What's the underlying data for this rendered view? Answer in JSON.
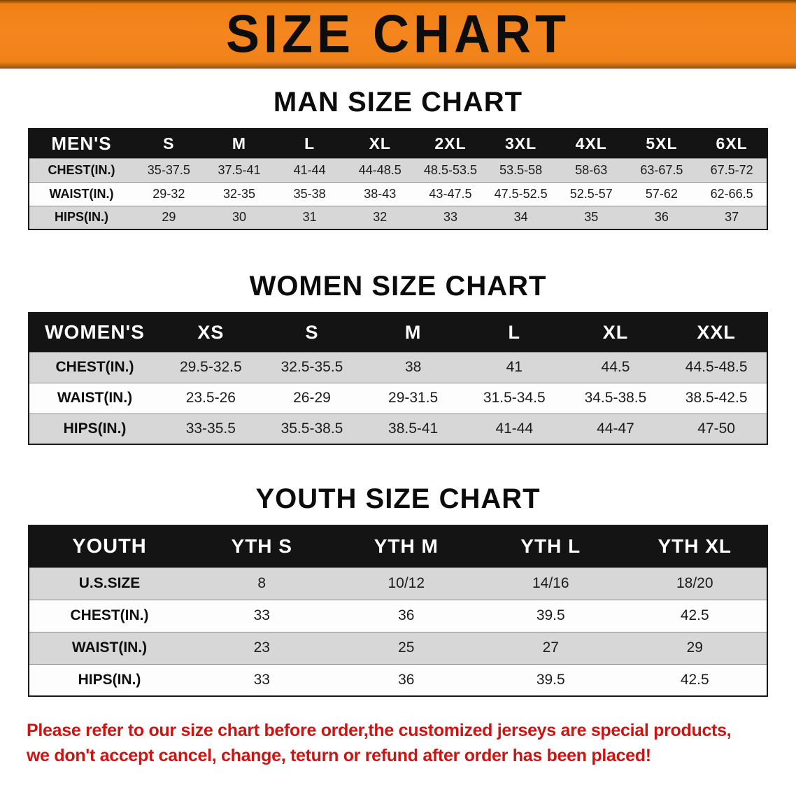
{
  "banner": {
    "title": "SIZE CHART",
    "bg_color": "#f5861f"
  },
  "sections": [
    {
      "heading": "MAN SIZE CHART",
      "table": {
        "header": [
          "MEN'S",
          "S",
          "M",
          "L",
          "XL",
          "2XL",
          "3XL",
          "4XL",
          "5XL",
          "6XL"
        ],
        "rows": [
          [
            "CHEST(IN.)",
            "35-37.5",
            "37.5-41",
            "41-44",
            "44-48.5",
            "48.5-53.5",
            "53.5-58",
            "58-63",
            "63-67.5",
            "67.5-72"
          ],
          [
            "WAIST(IN.)",
            "29-32",
            "32-35",
            "35-38",
            "38-43",
            "43-47.5",
            "47.5-52.5",
            "52.5-57",
            "57-62",
            "62-66.5"
          ],
          [
            "HIPS(IN.)",
            "29",
            "30",
            "31",
            "32",
            "33",
            "34",
            "35",
            "36",
            "37"
          ]
        ]
      }
    },
    {
      "heading": "WOMEN SIZE CHART",
      "table": {
        "header": [
          "WOMEN'S",
          "XS",
          "S",
          "M",
          "L",
          "XL",
          "XXL"
        ],
        "rows": [
          [
            "CHEST(IN.)",
            "29.5-32.5",
            "32.5-35.5",
            "38",
            "41",
            "44.5",
            "44.5-48.5"
          ],
          [
            "WAIST(IN.)",
            "23.5-26",
            "26-29",
            "29-31.5",
            "31.5-34.5",
            "34.5-38.5",
            "38.5-42.5"
          ],
          [
            "HIPS(IN.)",
            "33-35.5",
            "35.5-38.5",
            "38.5-41",
            "41-44",
            "44-47",
            "47-50"
          ]
        ]
      }
    },
    {
      "heading": "YOUTH SIZE CHART",
      "table": {
        "header": [
          "YOUTH",
          "YTH S",
          "YTH M",
          "YTH L",
          "YTH XL"
        ],
        "rows": [
          [
            "U.S.SIZE",
            "8",
            "10/12",
            "14/16",
            "18/20"
          ],
          [
            "CHEST(IN.)",
            "33",
            "36",
            "39.5",
            "42.5"
          ],
          [
            "WAIST(IN.)",
            "23",
            "25",
            "27",
            "29"
          ],
          [
            "HIPS(IN.)",
            "33",
            "36",
            "39.5",
            "42.5"
          ]
        ]
      }
    }
  ],
  "disclaimer": {
    "text_color": "#ce1312",
    "line1": "Please refer to our size chart before order,the customized jerseys are special products,",
    "line2": "we don't accept cancel, change, teturn or refund after order has been placed!"
  }
}
